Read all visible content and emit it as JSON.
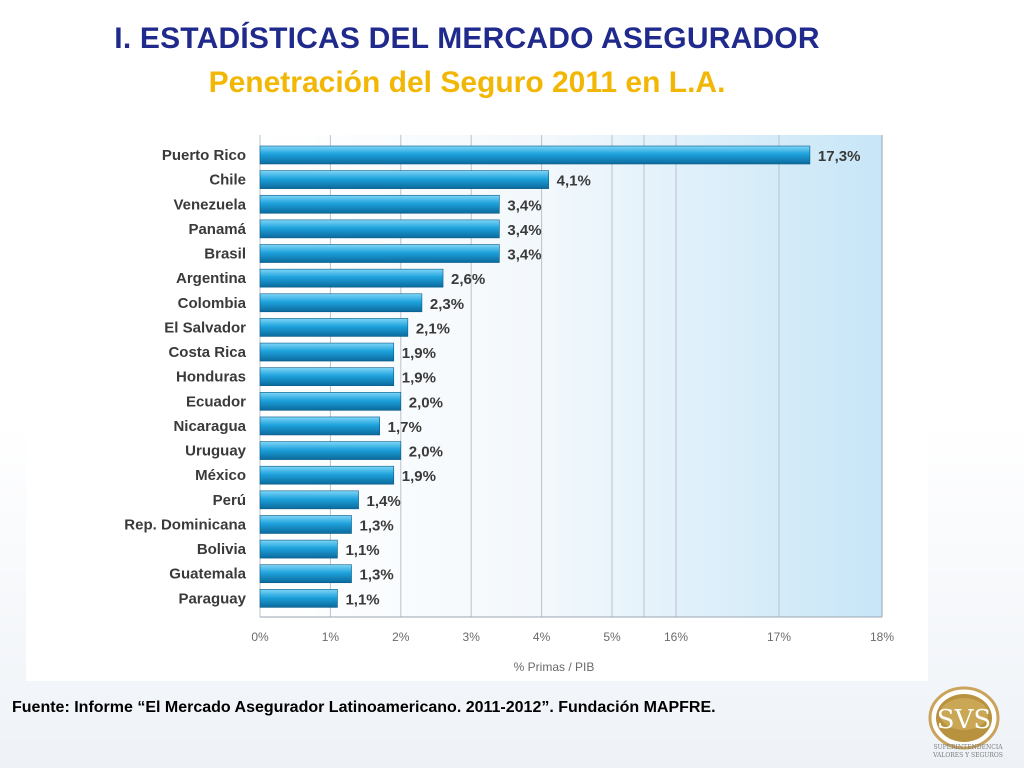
{
  "slide": {
    "title": "I. ESTADÍSTICAS DEL MERCADO ASEGURADOR",
    "subtitle": "Penetración del Seguro 2011 en L.A.",
    "source": "Fuente: Informe “El Mercado Asegurador Latinoamericano. 2011-2012”. Fundación MAPFRE."
  },
  "logo": {
    "text": "SVS",
    "caption_line1": "SUPERINTENDENCIA",
    "caption_line2": "VALORES Y SEGUROS"
  },
  "colors": {
    "title": "#1f2a8c",
    "subtitle": "#f2b705",
    "bar": "#1e9fd8",
    "bar_highlight": "#6fd0f5",
    "bar_shadow": "#0b5f8c",
    "axis_text": "#6a6a6a",
    "category_text": "#3a3a3a"
  },
  "chart_data": {
    "type": "bar",
    "orientation": "horizontal",
    "categories": [
      "Puerto Rico",
      "Chile",
      "Venezuela",
      "Panamá",
      "Brasil",
      "Argentina",
      "Colombia",
      "El Salvador",
      "Costa Rica",
      "Honduras",
      "Ecuador",
      "Nicaragua",
      "Uruguay",
      "México",
      "Perú",
      "Rep. Dominicana",
      "Bolivia",
      "Guatemala",
      "Paraguay"
    ],
    "values": [
      17.3,
      4.1,
      3.4,
      3.4,
      3.4,
      2.6,
      2.3,
      2.1,
      1.9,
      1.9,
      2.0,
      1.7,
      2.0,
      1.9,
      1.4,
      1.3,
      1.1,
      1.3,
      1.1
    ],
    "value_labels": [
      "17,3%",
      "4,1%",
      "3,4%",
      "3,4%",
      "3,4%",
      "2,6%",
      "2,3%",
      "2,1%",
      "1,9%",
      "1,9%",
      "2,0%",
      "1,7%",
      "2,0%",
      "1,9%",
      "1,4%",
      "1,3%",
      "1,1%",
      "1,3%",
      "1,1%"
    ],
    "xlabel": "% Primas / PIB",
    "ylabel": "",
    "axis_break": [
      5,
      16
    ],
    "ticks": [
      0,
      1,
      2,
      3,
      4,
      5,
      16,
      17,
      18
    ],
    "tick_labels": [
      "0%",
      "1%",
      "2%",
      "3%",
      "4%",
      "5%",
      "16%",
      "17%",
      "18%"
    ],
    "xlim": [
      0,
      18
    ],
    "grid": true
  }
}
